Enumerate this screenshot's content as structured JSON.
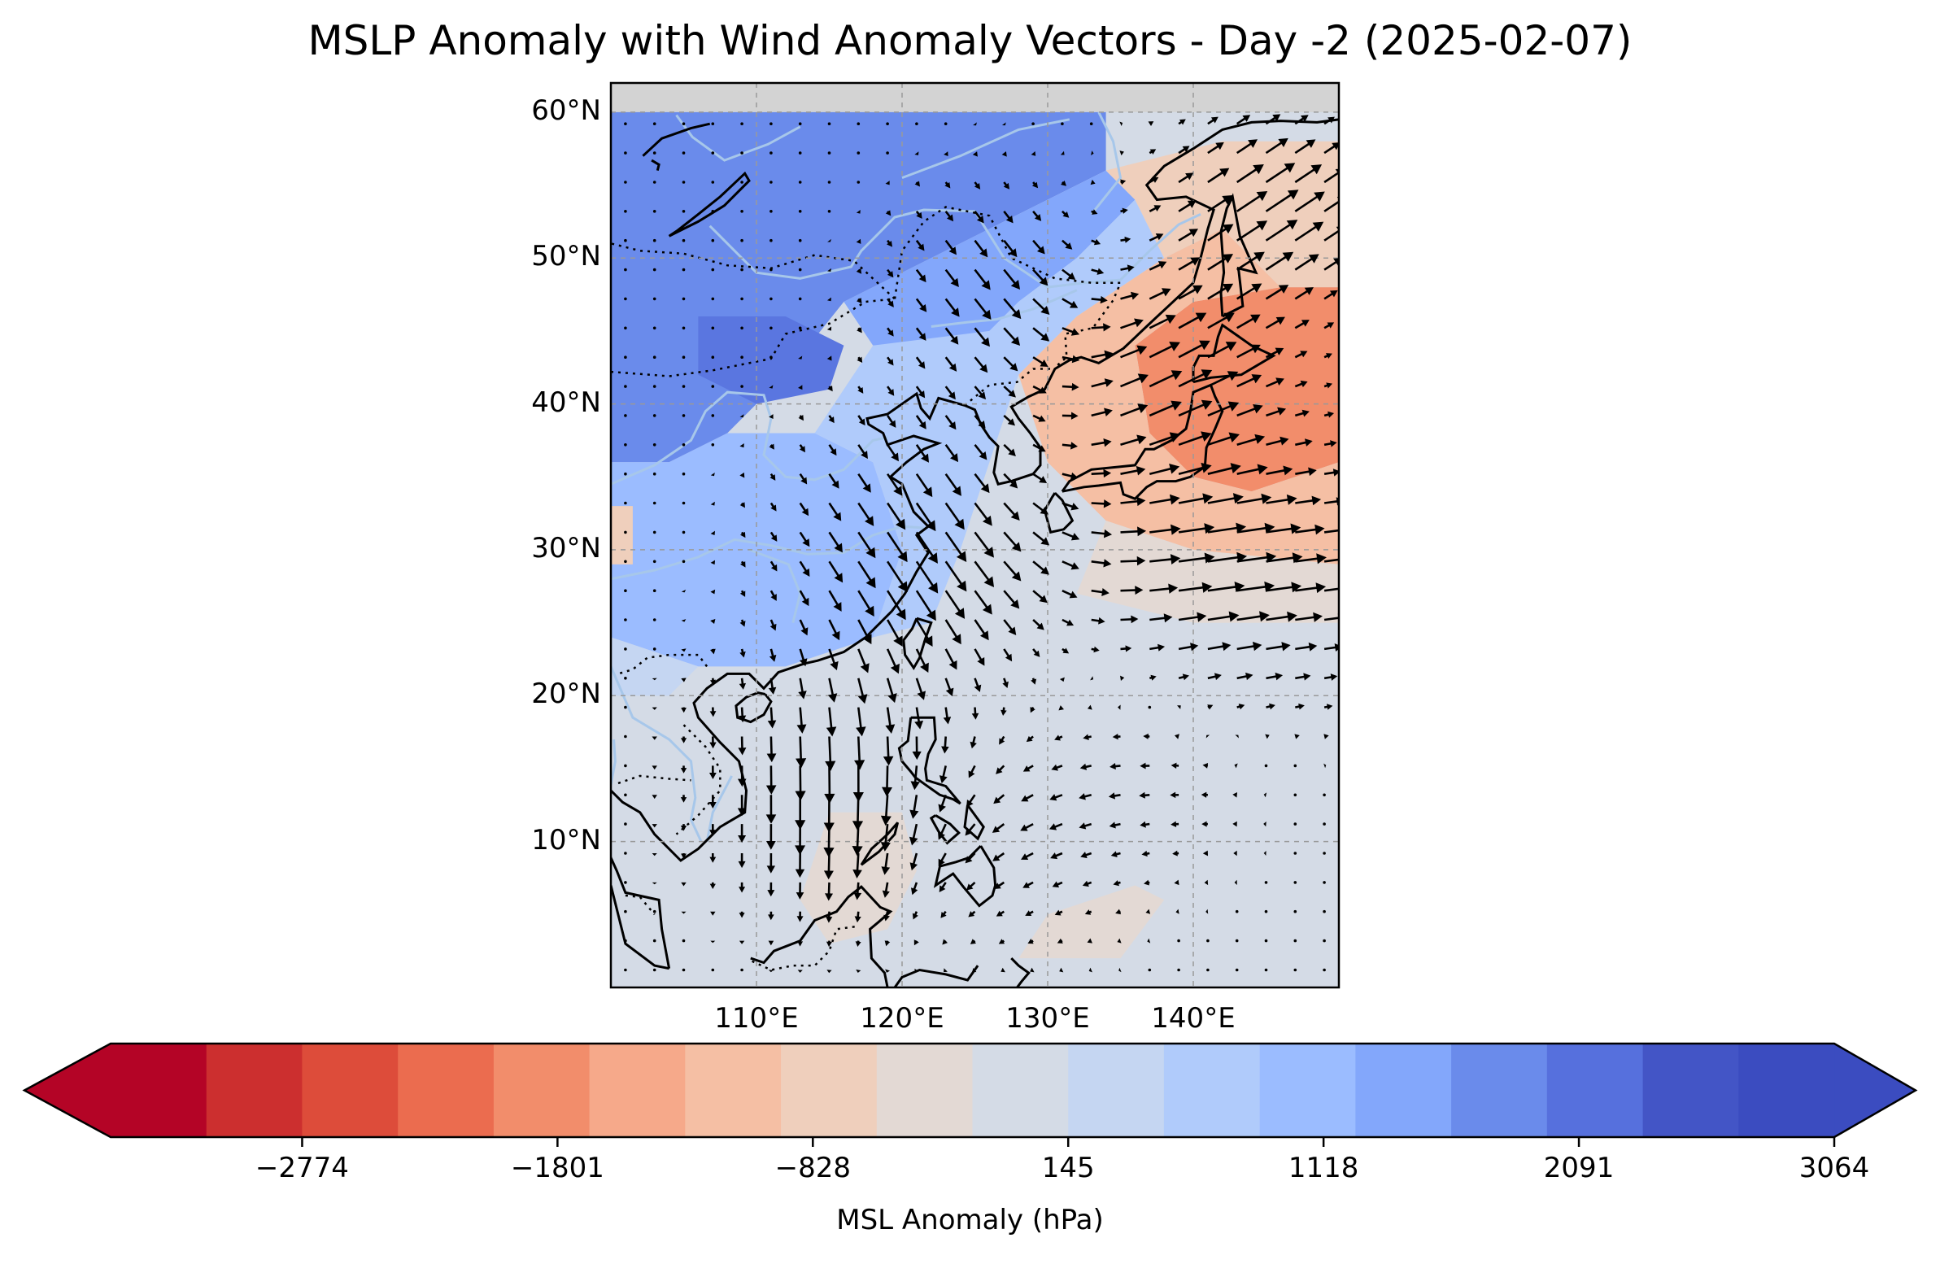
{
  "title": "MSLP Anomaly with Wind Anomaly Vectors - Day -2 (2025-02-07)",
  "map": {
    "lon_range": [
      100,
      150
    ],
    "lat_range": [
      0,
      62
    ],
    "lat_ticks": [
      {
        "value": 60,
        "label": "60°N"
      },
      {
        "value": 50,
        "label": "50°N"
      },
      {
        "value": 40,
        "label": "40°N"
      },
      {
        "value": 30,
        "label": "30°N"
      },
      {
        "value": 20,
        "label": "20°N"
      },
      {
        "value": 10,
        "label": "10°N"
      }
    ],
    "lon_ticks": [
      {
        "value": 110,
        "label": "110°E"
      },
      {
        "value": 120,
        "label": "120°E"
      },
      {
        "value": 130,
        "label": "130°E"
      },
      {
        "value": 140,
        "label": "140°E"
      }
    ],
    "no_data_above_lat": 60,
    "colors": {
      "no_data": "#d3d3d3",
      "coast": "#000000",
      "gridline": "#999999",
      "river": "#a7c7ea"
    }
  },
  "colorbar": {
    "label": "MSL Anomaly (hPa)",
    "colors": [
      "#b40426",
      "#cc2f2f",
      "#dd4c3a",
      "#eb6c4f",
      "#f28d6b",
      "#f6a98a",
      "#f5bfa4",
      "#efcfbc",
      "#e3d9d4",
      "#d4dbe6",
      "#c5d6f2",
      "#b0cbfb",
      "#9bbcff",
      "#83a7fb",
      "#6a8beb",
      "#5670dd",
      "#4355c6",
      "#3b4cc0"
    ],
    "under_color": "#b40426",
    "over_color": "#3b4cc0",
    "ticks": [
      {
        "value": -2774,
        "label": "−2774"
      },
      {
        "value": -1801,
        "label": "−1801"
      },
      {
        "value": -828,
        "label": "−828"
      },
      {
        "value": 145,
        "label": "145"
      },
      {
        "value": 1118,
        "label": "1118"
      },
      {
        "value": 2091,
        "label": "2091"
      },
      {
        "value": 3064,
        "label": "3064"
      }
    ]
  },
  "anomaly_regions": [
    {
      "name": "north-strong-negative",
      "level": 2500,
      "color": "#6a8beb",
      "poly": [
        [
          100,
          60
        ],
        [
          134,
          60
        ],
        [
          134,
          56
        ],
        [
          128,
          53
        ],
        [
          122,
          50
        ],
        [
          116,
          47
        ],
        [
          112,
          42
        ],
        [
          108,
          38
        ],
        [
          104,
          36
        ],
        [
          100,
          36
        ]
      ]
    },
    {
      "name": "core-negative",
      "level": 2200,
      "color": "#5a76e0",
      "poly": [
        [
          106,
          46
        ],
        [
          112,
          46
        ],
        [
          116,
          44
        ],
        [
          115,
          41
        ],
        [
          110,
          40
        ],
        [
          106,
          42
        ]
      ]
    },
    {
      "name": "mid-negative",
      "level": 1600,
      "color": "#9bbcff",
      "poly": [
        [
          100,
          36
        ],
        [
          104,
          36
        ],
        [
          108,
          38
        ],
        [
          114,
          38
        ],
        [
          118,
          36
        ],
        [
          120,
          30
        ],
        [
          118,
          24
        ],
        [
          112,
          22
        ],
        [
          106,
          22
        ],
        [
          100,
          24
        ]
      ]
    },
    {
      "name": "mongolia-mid-negative",
      "level": 1500,
      "color": "#83a7fb",
      "poly": [
        [
          116,
          47
        ],
        [
          122,
          50
        ],
        [
          128,
          53
        ],
        [
          134,
          56
        ],
        [
          136,
          54
        ],
        [
          132,
          50
        ],
        [
          128,
          47
        ],
        [
          126,
          45
        ],
        [
          124,
          44
        ],
        [
          120,
          44
        ],
        [
          118,
          44
        ]
      ]
    },
    {
      "name": "east-china-weak-negative",
      "level": 900,
      "color": "#b0cbfb",
      "poly": [
        [
          118,
          44
        ],
        [
          126,
          45
        ],
        [
          128,
          47
        ],
        [
          132,
          50
        ],
        [
          136,
          54
        ],
        [
          138,
          50
        ],
        [
          132,
          46
        ],
        [
          128,
          42
        ],
        [
          126,
          36
        ],
        [
          124,
          30
        ],
        [
          122,
          25
        ],
        [
          118,
          24
        ],
        [
          120,
          30
        ],
        [
          118,
          36
        ],
        [
          114,
          38
        ]
      ]
    },
    {
      "name": "tibet-edge-weak-negative",
      "level": 700,
      "color": "#c5d6f2",
      "poly": [
        [
          100,
          24
        ],
        [
          106,
          22
        ],
        [
          104,
          20
        ],
        [
          100,
          20
        ]
      ]
    },
    {
      "name": "japan-positive",
      "level": -1500,
      "color": "#f28d6b",
      "poly": [
        [
          136,
          44
        ],
        [
          140,
          47
        ],
        [
          146,
          48
        ],
        [
          150,
          48
        ],
        [
          150,
          36
        ],
        [
          144,
          34
        ],
        [
          140,
          35
        ],
        [
          137,
          38
        ]
      ]
    },
    {
      "name": "japan-weak-positive",
      "level": -900,
      "color": "#f5bfa4",
      "poly": [
        [
          128,
          42
        ],
        [
          132,
          46
        ],
        [
          138,
          50
        ],
        [
          142,
          52
        ],
        [
          144,
          50
        ],
        [
          146,
          48
        ],
        [
          140,
          47
        ],
        [
          136,
          44
        ],
        [
          137,
          38
        ],
        [
          140,
          35
        ],
        [
          144,
          34
        ],
        [
          150,
          36
        ],
        [
          150,
          29
        ],
        [
          140,
          30
        ],
        [
          134,
          32
        ],
        [
          130,
          36
        ]
      ]
    },
    {
      "name": "okhotsk-weak-positive",
      "level": -600,
      "color": "#efcfbc",
      "poly": [
        [
          134,
          56
        ],
        [
          142,
          58
        ],
        [
          150,
          58
        ],
        [
          150,
          48
        ],
        [
          146,
          48
        ],
        [
          144,
          50
        ],
        [
          142,
          52
        ],
        [
          138,
          50
        ],
        [
          136,
          54
        ]
      ]
    },
    {
      "name": "subtropic-neutral",
      "level": -500,
      "color": "#e3d9d4",
      "poly": [
        [
          134,
          32
        ],
        [
          140,
          30
        ],
        [
          150,
          29
        ],
        [
          150,
          25
        ],
        [
          140,
          25
        ],
        [
          132,
          27
        ]
      ]
    },
    {
      "name": "west-tibet-positive",
      "level": -900,
      "color": "#efcfbc",
      "poly": [
        [
          100,
          33
        ],
        [
          101.5,
          33
        ],
        [
          101.5,
          29
        ],
        [
          100,
          29
        ]
      ]
    },
    {
      "name": "borneo-weak-positive",
      "level": -500,
      "color": "#e3d9d4",
      "poly": [
        [
          115,
          12
        ],
        [
          120,
          12
        ],
        [
          121,
          8
        ],
        [
          119,
          4
        ],
        [
          115,
          3
        ],
        [
          113,
          6
        ]
      ]
    },
    {
      "name": "newguinea-weak-positive",
      "level": -500,
      "color": "#e3d9d4",
      "poly": [
        [
          128,
          2
        ],
        [
          135,
          2
        ],
        [
          138,
          6
        ],
        [
          136,
          7
        ],
        [
          130,
          5
        ]
      ]
    }
  ],
  "wind_field": [
    {
      "name": "east-china-northerlies",
      "center": [
        121,
        30
      ],
      "radius": 9,
      "u": 4,
      "v": -6
    },
    {
      "name": "scs-northerlies",
      "center": [
        115,
        14
      ],
      "radius": 8,
      "u": 0,
      "v": -7
    },
    {
      "name": "japan-westerlies",
      "center": [
        142,
        28
      ],
      "radius": 10,
      "u": 8,
      "v": 1
    },
    {
      "name": "japan-sw-flow",
      "center": [
        138,
        42
      ],
      "radius": 7,
      "u": 5,
      "v": 3
    },
    {
      "name": "okhotsk-sw-flow",
      "center": [
        145,
        53
      ],
      "radius": 7,
      "u": 6,
      "v": 4
    },
    {
      "name": "mongolia-nw-flow",
      "center": [
        126,
        48
      ],
      "radius": 7,
      "u": 3,
      "v": -4
    },
    {
      "name": "pacific-easterly-return",
      "center": [
        138,
        18
      ],
      "radius": 9,
      "u": -3,
      "v": 0
    },
    {
      "name": "philippine-trades",
      "center": [
        128,
        10
      ],
      "radius": 8,
      "u": -2,
      "v": -1
    }
  ]
}
